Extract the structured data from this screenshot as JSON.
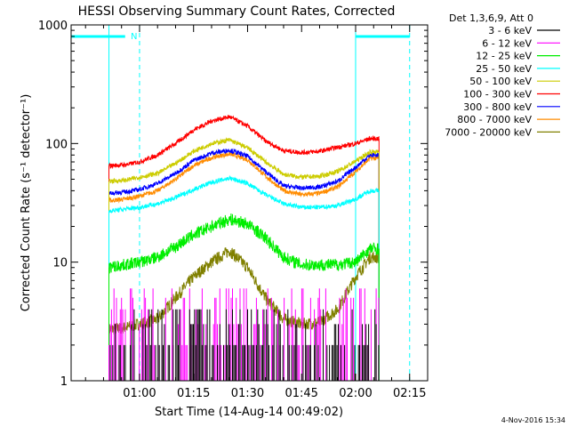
{
  "chart_data": {
    "type": "line",
    "title": "HESSI Observing Summary Count Rates, Corrected",
    "xlabel": "Start Time (14-Aug-14 00:49:02)",
    "ylabel": "Corrected Count Rate (s⁻¹ detector⁻¹)",
    "y_scale": "log",
    "ylim": [
      1,
      1000
    ],
    "xlim_minutes": [
      41,
      140
    ],
    "x_tick_labels": [
      "01:00",
      "01:15",
      "01:30",
      "01:45",
      "02:00",
      "02:15"
    ],
    "x_tick_minutes": [
      60,
      75,
      90,
      105,
      120,
      135
    ],
    "y_tick_labels": [
      "1",
      "10",
      "100",
      "1000"
    ],
    "y_tick_values": [
      1,
      10,
      100,
      1000
    ],
    "legend_header": "Det 1,3,6,9, Att 0",
    "legend_position": "right",
    "footer_date": "4-Nov-2016 15:34",
    "night_marker_label": "N",
    "data_span_minutes": [
      51.5,
      126.5
    ],
    "series": [
      {
        "name": "3 - 6 keV",
        "color": "#000000",
        "style": "noise_low",
        "x": [
          51.5,
          126.5
        ],
        "y_range": [
          1,
          4
        ]
      },
      {
        "name": "6 - 12 keV",
        "color": "#ff00ff",
        "style": "noise_low",
        "x": [
          51.5,
          126.5
        ],
        "y_range": [
          1,
          6
        ]
      },
      {
        "name": "12 - 25 keV",
        "color": "#00ee00",
        "x": [
          51.5,
          56,
          60,
          65,
          70,
          75,
          80,
          85,
          90,
          95,
          100,
          105,
          110,
          115,
          120,
          124,
          126.5
        ],
        "y": [
          9,
          9.5,
          10,
          11,
          13.5,
          17,
          20,
          23,
          21,
          16,
          11,
          9.5,
          9.5,
          9.5,
          10,
          13,
          13
        ]
      },
      {
        "name": "25 - 50 keV",
        "color": "#00ffff",
        "x": [
          51.5,
          56,
          60,
          65,
          70,
          75,
          80,
          85,
          90,
          95,
          100,
          105,
          110,
          115,
          120,
          124,
          126.5
        ],
        "y": [
          27,
          28,
          29,
          31,
          35,
          41,
          47,
          51,
          46,
          37,
          31,
          29,
          29,
          30,
          34,
          40,
          40
        ]
      },
      {
        "name": "50 - 100 keV",
        "color": "#cccc00",
        "x": [
          51.5,
          56,
          60,
          65,
          70,
          75,
          80,
          85,
          90,
          95,
          100,
          105,
          110,
          115,
          120,
          124,
          126.5
        ],
        "y": [
          48,
          49,
          52,
          56,
          68,
          86,
          100,
          107,
          92,
          70,
          55,
          52,
          53,
          58,
          71,
          85,
          85
        ]
      },
      {
        "name": "100 - 300 keV",
        "color": "#ff0000",
        "x": [
          51.5,
          56,
          60,
          65,
          70,
          75,
          80,
          85,
          90,
          95,
          100,
          105,
          110,
          115,
          120,
          124,
          126.5
        ],
        "y": [
          65,
          66,
          70,
          80,
          100,
          130,
          155,
          168,
          140,
          105,
          87,
          84,
          86,
          93,
          100,
          110,
          110
        ]
      },
      {
        "name": "300 - 800 keV",
        "color": "#0000ff",
        "x": [
          51.5,
          56,
          60,
          65,
          70,
          75,
          80,
          85,
          90,
          95,
          100,
          105,
          110,
          115,
          120,
          124,
          126.5
        ],
        "y": [
          38,
          39,
          41,
          46,
          56,
          72,
          83,
          88,
          78,
          58,
          44,
          42,
          43,
          48,
          63,
          80,
          80
        ]
      },
      {
        "name": "800 - 7000 keV",
        "color": "#ff8c00",
        "x": [
          51.5,
          56,
          60,
          65,
          70,
          75,
          80,
          85,
          90,
          95,
          100,
          105,
          110,
          115,
          120,
          124,
          126.5
        ],
        "y": [
          33,
          34,
          36,
          40,
          50,
          65,
          76,
          82,
          73,
          53,
          40,
          37,
          38,
          43,
          58,
          75,
          75
        ]
      },
      {
        "name": "7000 - 20000 keV",
        "color": "#808000",
        "x": [
          51.5,
          56,
          60,
          65,
          70,
          75,
          80,
          85,
          90,
          95,
          100,
          105,
          110,
          115,
          120,
          124,
          126.5
        ],
        "y": [
          2.7,
          2.8,
          3.0,
          3.3,
          5.0,
          7.5,
          10,
          12.5,
          9.0,
          5.0,
          3.3,
          3.0,
          3.1,
          4.0,
          7.5,
          11,
          11
        ]
      }
    ],
    "interval_lines": [
      {
        "kind": "solid",
        "color": "#00ffff",
        "x": [
          51.5,
          120
        ]
      },
      {
        "kind": "dashed",
        "color": "#00ffff",
        "x": [
          60,
          135
        ]
      }
    ],
    "top_bars": [
      {
        "color": "#00ffff",
        "x": [
          41,
          56
        ]
      },
      {
        "color": "#00ffff",
        "x": [
          120,
          135
        ]
      }
    ]
  }
}
